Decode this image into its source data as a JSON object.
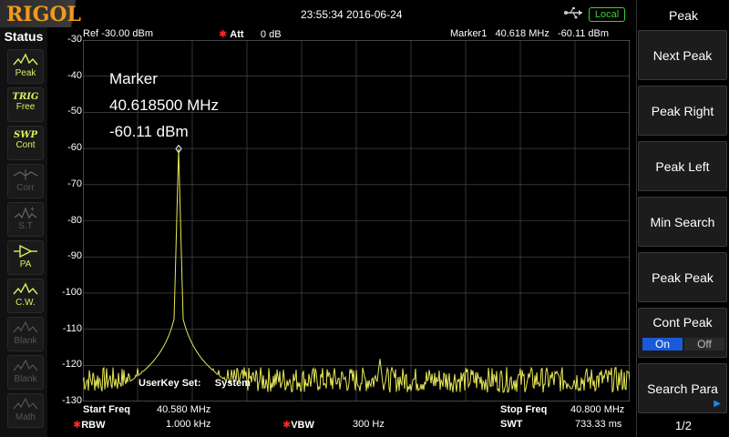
{
  "brand": "RIGOL",
  "datetime": "23:55:34 2016-06-24",
  "local_label": "Local",
  "status": {
    "title": "Status",
    "items": [
      {
        "line1": "Peak",
        "icon": "peak-icon",
        "active": true
      },
      {
        "line1": "TRIG",
        "line2": "Free",
        "active": true
      },
      {
        "line1": "SWP",
        "line2": "Cont",
        "active": true
      },
      {
        "line1": "Corr",
        "icon": "corr-icon",
        "active": false
      },
      {
        "line1": "S.T",
        "icon": "st-icon",
        "active": false
      },
      {
        "line1": "PA",
        "icon": "pa-icon",
        "active": true
      },
      {
        "line1": "C.W.",
        "icon": "cw-icon",
        "active": true
      },
      {
        "line1": "Blank",
        "icon": "blank-icon",
        "active": false
      },
      {
        "line1": "Blank",
        "icon": "blank-icon",
        "active": false
      },
      {
        "line1": "Math",
        "icon": "math-icon",
        "active": false
      }
    ]
  },
  "header": {
    "ref_label": "Ref",
    "ref_value": "-30.00 dBm",
    "att_label": "Att",
    "att_value": "0 dB",
    "marker_label": "Marker1",
    "marker_freq": "40.618 MHz",
    "marker_level": "-60.11 dBm"
  },
  "marker_box": {
    "title": "Marker",
    "freq": "40.618500 MHz",
    "level": "-60.11 dBm"
  },
  "userkey": {
    "label": "UserKey Set:",
    "value": "System"
  },
  "footer": {
    "start_label": "Start Freq",
    "start_value": "40.580 MHz",
    "stop_label": "Stop Freq",
    "stop_value": "40.800 MHz",
    "rbw_label": "RBW",
    "rbw_value": "1.000 kHz",
    "vbw_label": "VBW",
    "vbw_value": "300 Hz",
    "swt_label": "SWT",
    "swt_value": "733.33 ms"
  },
  "softkeys": {
    "title": "Peak",
    "next_peak": "Next Peak",
    "peak_right": "Peak Right",
    "peak_left": "Peak Left",
    "min_search": "Min Search",
    "peak_peak": "Peak Peak",
    "cont_peak": "Cont Peak",
    "on": "On",
    "off": "Off",
    "search_para": "Search Para",
    "page": "1/2"
  },
  "chart_data": {
    "type": "line",
    "x_range_mhz": [
      40.58,
      40.8
    ],
    "ylim": [
      -130,
      -30
    ],
    "y_ticks": [
      "-30",
      "-40",
      "-50",
      "-60",
      "-70",
      "-80",
      "-90",
      "-100",
      "-110",
      "-120",
      "-130"
    ],
    "grid": true,
    "trace_color": "#e8e85a",
    "noise_floor_dbm": -124,
    "peak": {
      "x_mhz": 40.6185,
      "y_dbm": -60.11
    },
    "secondary_spike": {
      "x_mhz": 40.6995,
      "y_dbm": -118
    }
  }
}
